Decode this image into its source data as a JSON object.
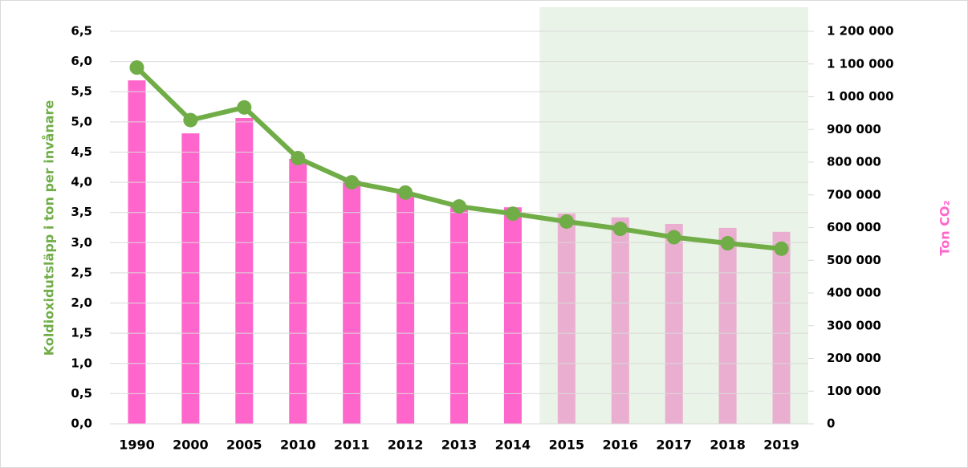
{
  "chart_data": {
    "type": "bar_line",
    "categories": [
      "1990",
      "2000",
      "2005",
      "2010",
      "2011",
      "2012",
      "2013",
      "2014",
      "2015",
      "2016",
      "2017",
      "2018",
      "2019"
    ],
    "y_label": "Koldioxidutsläpp i ton per invånare",
    "y2_label": "Ton CO₂",
    "series": [
      {
        "type": "bar",
        "axis": "y2",
        "color": "#ff66cc",
        "values": [
          1050000,
          888000,
          935000,
          810000,
          744000,
          707000,
          667000,
          662000,
          643000,
          631000,
          611000,
          599000,
          587000
        ]
      },
      {
        "type": "line",
        "axis": "y",
        "color": "#70ad47",
        "values": [
          5.9,
          5.03,
          5.24,
          4.4,
          4.0,
          3.83,
          3.6,
          3.48,
          3.35,
          3.23,
          3.09,
          2.99,
          2.9
        ]
      }
    ],
    "ylim": [
      0,
      6.5
    ],
    "yticks": [
      {
        "value": 0,
        "label": "0,0"
      },
      {
        "value": 0.5,
        "label": "0,5"
      },
      {
        "value": 1,
        "label": "1,0"
      },
      {
        "value": 1.5,
        "label": "1,5"
      },
      {
        "value": 2,
        "label": "2,0"
      },
      {
        "value": 2.5,
        "label": "2,5"
      },
      {
        "value": 3,
        "label": "3,0"
      },
      {
        "value": 3.5,
        "label": "3,5"
      },
      {
        "value": 4,
        "label": "4,0"
      },
      {
        "value": 4.5,
        "label": "4,5"
      },
      {
        "value": 5,
        "label": "5,0"
      },
      {
        "value": 5.5,
        "label": "5,5"
      },
      {
        "value": 6,
        "label": "6,0"
      },
      {
        "value": 6.5,
        "label": "6,5"
      }
    ],
    "y2lim": [
      0,
      1200000
    ],
    "y2ticks": [
      0,
      {
        "value": 100000,
        "label": "100 000"
      },
      {
        "value": 200000,
        "label": "200 000"
      },
      {
        "value": 300000,
        "label": "300 000"
      },
      {
        "value": 400000,
        "label": "400 000"
      },
      {
        "value": 500000,
        "label": "500 000"
      },
      {
        "value": 600000,
        "label": "600 000"
      },
      {
        "value": 700000,
        "label": "700 000"
      },
      {
        "value": 800000,
        "label": "800 000"
      },
      {
        "value": 900000,
        "label": "900 000"
      },
      {
        "value": 1000000,
        "label": "1 000 000"
      },
      {
        "value": 1100000,
        "label": "1 100 000"
      },
      {
        "value": 1200000,
        "label": "1 200 000"
      }
    ],
    "grid": true,
    "highlight_start": 8,
    "highlight_color": "#d9ead3"
  }
}
